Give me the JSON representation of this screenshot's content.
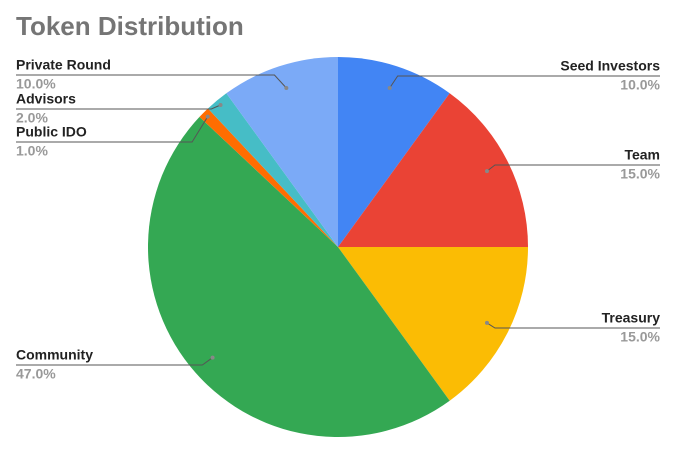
{
  "chart_data": {
    "type": "pie",
    "title": "Token Distribution",
    "categories": [
      "Seed Investors",
      "Team",
      "Treasury",
      "Community",
      "Public IDO",
      "Advisors",
      "Private Round"
    ],
    "values": [
      10,
      15,
      15,
      47,
      1,
      2,
      10
    ],
    "value_labels": [
      "10.0%",
      "15.0%",
      "15.0%",
      "47.0%",
      "1.0%",
      "2.0%",
      "10.0%"
    ],
    "colors": [
      "#4285f4",
      "#ea4335",
      "#fbbc04",
      "#34a853",
      "#ff6d01",
      "#46bdc6",
      "#7baaf7"
    ]
  }
}
